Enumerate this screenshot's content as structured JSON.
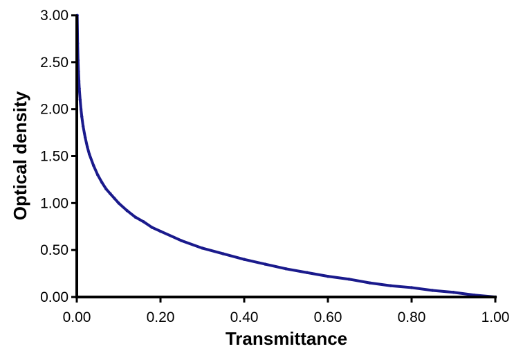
{
  "chart_data": {
    "type": "scatter",
    "title": "",
    "xlabel": "Transmittance",
    "ylabel": "Optical density",
    "xlim": [
      0,
      1
    ],
    "ylim": [
      0,
      3
    ],
    "x_ticks": [
      0,
      0.2,
      0.4,
      0.6,
      0.8,
      1.0
    ],
    "x_tick_labels": [
      "0.00",
      "0.20",
      "0.40",
      "0.60",
      "0.80",
      "1.00"
    ],
    "y_ticks": [
      0,
      0.5,
      1.0,
      1.5,
      2.0,
      2.5,
      3.0
    ],
    "y_tick_labels": [
      "0.00",
      "0.50",
      "1.00",
      "1.50",
      "2.00",
      "2.50",
      "3.00"
    ],
    "grid": false,
    "legend": "none",
    "series": [
      {
        "color": "#1a1a8c",
        "x": [
          0.001,
          0.002,
          0.003,
          0.004,
          0.005,
          0.006,
          0.008,
          0.01,
          0.012,
          0.015,
          0.02,
          0.025,
          0.03,
          0.04,
          0.05,
          0.06,
          0.07,
          0.08,
          0.09,
          0.1,
          0.12,
          0.14,
          0.16,
          0.18,
          0.2,
          0.25,
          0.3,
          0.35,
          0.4,
          0.45,
          0.5,
          0.55,
          0.6,
          0.65,
          0.7,
          0.75,
          0.8,
          0.85,
          0.9,
          0.95,
          1.0
        ],
        "y": [
          3.0,
          2.7,
          2.52,
          2.4,
          2.3,
          2.22,
          2.1,
          2.0,
          1.92,
          1.82,
          1.7,
          1.6,
          1.52,
          1.4,
          1.3,
          1.22,
          1.15,
          1.1,
          1.05,
          1.0,
          0.92,
          0.85,
          0.8,
          0.74,
          0.7,
          0.6,
          0.52,
          0.46,
          0.4,
          0.35,
          0.3,
          0.26,
          0.22,
          0.19,
          0.15,
          0.12,
          0.1,
          0.07,
          0.05,
          0.02,
          0.0
        ]
      }
    ]
  }
}
